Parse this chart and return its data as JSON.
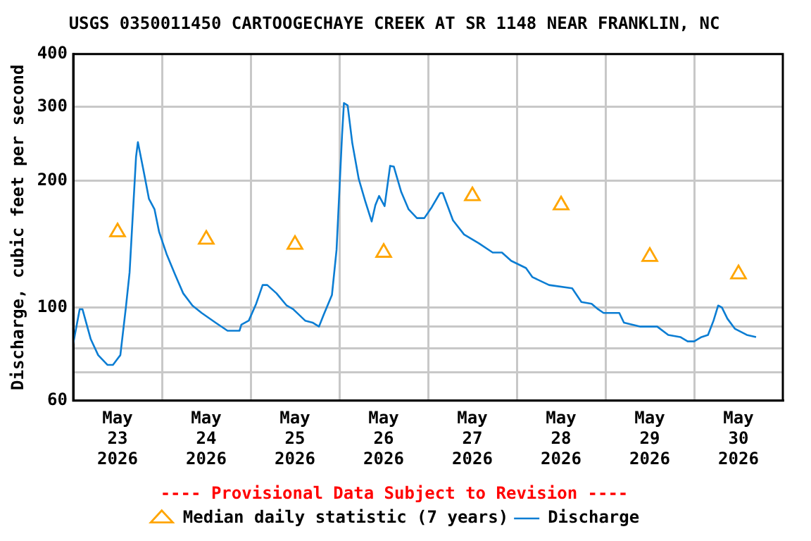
{
  "chart_data": {
    "type": "line",
    "title": "USGS 0350011450 CARTOOGECHAYE CREEK AT SR 1148 NEAR FRANKLIN, NC",
    "ylabel": "Discharge, cubic feet per second",
    "annotations": [
      "---- Provisional Data Subject to Revision ----"
    ],
    "log": "y",
    "grid": true,
    "legend": "bottom",
    "xlim": [
      "2026-05-23",
      "2026-05-31"
    ],
    "xticks": [
      {
        "value": "2026-05-23T12:00",
        "label": "May 23 2026"
      },
      {
        "value": "2026-05-24",
        "label": null
      },
      {
        "value": "2026-05-24T12:00",
        "label": "May 24 2026"
      },
      {
        "value": "2026-05-25",
        "label": null
      },
      {
        "value": "2026-05-25T12:00",
        "label": "May 25 2026"
      },
      {
        "value": "2026-05-26",
        "label": null
      },
      {
        "value": "2026-05-26T12:00",
        "label": "May 26 2026"
      },
      {
        "value": "2026-05-27",
        "label": null
      },
      {
        "value": "2026-05-27T12:00",
        "label": "May 27 2026"
      },
      {
        "value": "2026-05-28",
        "label": null
      },
      {
        "value": "2026-05-28T12:00",
        "label": "May 28 2026"
      },
      {
        "value": "2026-05-29",
        "label": null
      },
      {
        "value": "2026-05-29T12:00",
        "label": "May 29 2026"
      },
      {
        "value": "2026-05-30",
        "label": null
      },
      {
        "value": "2026-05-30T12:00",
        "label": "May 30 2026"
      }
    ],
    "ylim": [
      60,
      400
    ],
    "yticks": [
      60,
      {
        "value": 70,
        "label": null
      },
      {
        "value": 80,
        "label": null
      },
      {
        "value": 90,
        "label": null
      },
      100,
      200,
      300,
      400
    ],
    "series": [
      {
        "name": "Median daily statistic (7 years)",
        "type": "scatter",
        "marker": "triangle",
        "color": "#ffa500",
        "x": [
          "2026-05-23T12:00",
          "2026-05-24T12:00",
          "2026-05-25T12:00",
          "2026-05-26T12:00",
          "2026-05-27T12:00",
          "2026-05-28T12:00",
          "2026-05-29T12:00",
          "2026-05-30T12:00"
        ],
        "values": [
          151,
          145,
          141,
          135,
          184,
          175,
          132,
          120
        ]
      },
      {
        "name": "Discharge",
        "marker": "none",
        "color": "#0b7dd3",
        "x": [
          "2026-05-23T00:00",
          "2026-05-23T01:45",
          "2026-05-23T02:30",
          "2026-05-23T04:45",
          "2026-05-23T06:45",
          "2026-05-23T09:15",
          "2026-05-23T10:45",
          "2026-05-23T12:45",
          "2026-05-23T14:15",
          "2026-05-23T15:15",
          "2026-05-23T17:00",
          "2026-05-23T17:30",
          "2026-05-23T19:00",
          "2026-05-23T20:30",
          "2026-05-23T22:00",
          "2026-05-23T23:15",
          "2026-05-24T01:15",
          "2026-05-24T03:30",
          "2026-05-24T05:45",
          "2026-05-24T08:15",
          "2026-05-24T10:45",
          "2026-05-24T14:30",
          "2026-05-24T17:45",
          "2026-05-24T21:00",
          "2026-05-24T21:30",
          "2026-05-24T23:30",
          "2026-05-25T01:30",
          "2026-05-25T03:15",
          "2026-05-25T04:30",
          "2026-05-25T07:00",
          "2026-05-25T09:45",
          "2026-05-25T11:30",
          "2026-05-25T14:45",
          "2026-05-25T16:45",
          "2026-05-25T18:30",
          "2026-05-25T19:45",
          "2026-05-25T22:00",
          "2026-05-25T23:15",
          "2026-05-26T00:45",
          "2026-05-26T01:15",
          "2026-05-26T02:15",
          "2026-05-26T03:30",
          "2026-05-26T05:15",
          "2026-05-26T07:00",
          "2026-05-26T08:45",
          "2026-05-26T09:45",
          "2026-05-26T10:45",
          "2026-05-26T12:15",
          "2026-05-26T13:45",
          "2026-05-26T14:45",
          "2026-05-26T16:45",
          "2026-05-26T18:45",
          "2026-05-26T21:00",
          "2026-05-26T23:00",
          "2026-05-27T01:00",
          "2026-05-27T03:15",
          "2026-05-27T04:00",
          "2026-05-27T06:45",
          "2026-05-27T09:45",
          "2026-05-27T13:45",
          "2026-05-27T17:30",
          "2026-05-27T20:00",
          "2026-05-27T22:30",
          "2026-05-28T02:30",
          "2026-05-28T04:15",
          "2026-05-28T08:45",
          "2026-05-28T15:00",
          "2026-05-28T17:30",
          "2026-05-28T20:15",
          "2026-05-28T22:00",
          "2026-05-28T23:30",
          "2026-05-29T03:45",
          "2026-05-29T05:00",
          "2026-05-29T09:30",
          "2026-05-29T14:00",
          "2026-05-29T17:00",
          "2026-05-29T20:15",
          "2026-05-29T22:15",
          "2026-05-30T00:00",
          "2026-05-30T02:00",
          "2026-05-30T03:45",
          "2026-05-30T05:15",
          "2026-05-30T06:30",
          "2026-05-30T07:30",
          "2026-05-30T09:00",
          "2026-05-30T11:00",
          "2026-05-30T14:15",
          "2026-05-30T16:45"
        ],
        "values": [
          82,
          99,
          99,
          84,
          77,
          73,
          73,
          77,
          100,
          121,
          228,
          247,
          212,
          181,
          171,
          151,
          134,
          120,
          108,
          101,
          97,
          92,
          88,
          88,
          91,
          93,
          102,
          113,
          113,
          108,
          101,
          99,
          93,
          92,
          90,
          96,
          107,
          137,
          258,
          306,
          302,
          246,
          202,
          179,
          160,
          175,
          184,
          174,
          217,
          216,
          188,
          171,
          163,
          163,
          173,
          187,
          187,
          161,
          149,
          142,
          135,
          135,
          129,
          124,
          118,
          113,
          111,
          103,
          102,
          99,
          97,
          97,
          92,
          90,
          90,
          86,
          85,
          83,
          83,
          85,
          86,
          93,
          101,
          100,
          94,
          89,
          86,
          85
        ]
      }
    ]
  }
}
